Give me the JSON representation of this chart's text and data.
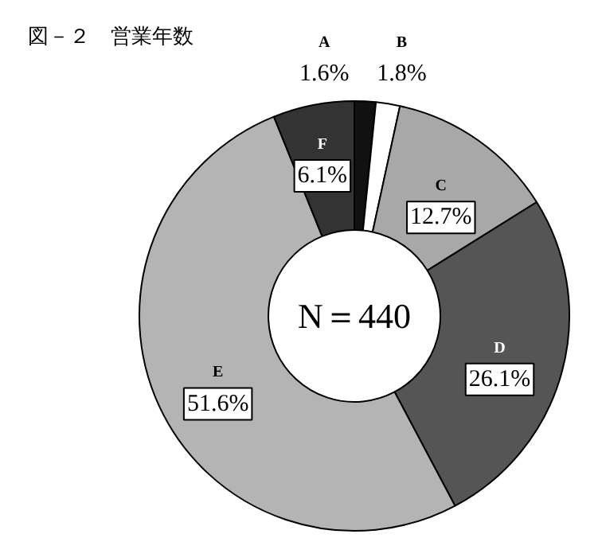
{
  "chart_data": {
    "type": "donut",
    "title": "図－２　営業年数",
    "categories": [
      "A",
      "B",
      "C",
      "D",
      "E",
      "F"
    ],
    "values": [
      1.6,
      1.8,
      12.7,
      26.1,
      51.6,
      6.1
    ],
    "value_labels": [
      "1.6%",
      "1.8%",
      "12.7%",
      "26.1%",
      "51.6%",
      "6.1%"
    ],
    "colors": [
      "#111111",
      "#ffffff",
      "#a8a8a8",
      "#555555",
      "#b4b4b4",
      "#333333"
    ],
    "annotations": [
      "N＝440"
    ]
  }
}
